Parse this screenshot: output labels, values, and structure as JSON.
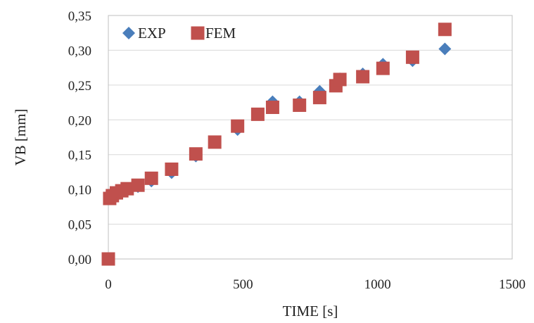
{
  "chart_data": {
    "type": "scatter",
    "xlabel": "TIME [s]",
    "ylabel": "VB [mm]",
    "xlim": [
      0,
      1500
    ],
    "ylim": [
      0,
      0.35
    ],
    "xticks": [
      0,
      500,
      1000,
      1500
    ],
    "xtick_labels": [
      "0",
      "500",
      "1000",
      "1500"
    ],
    "yticks": [
      0,
      0.05,
      0.1,
      0.15,
      0.2,
      0.25,
      0.3,
      0.35
    ],
    "ytick_labels": [
      "0,00",
      "0,05",
      "0,10",
      "0,15",
      "0,20",
      "0,25",
      "0,30",
      "0,35"
    ],
    "grid": "horizontal",
    "legend_position": "top-left",
    "series": [
      {
        "name": "EXP",
        "marker": "diamond",
        "color": "#4a7ebb",
        "x": [
          0,
          5,
          15,
          30,
          50,
          70,
          110,
          160,
          235,
          325,
          395,
          480,
          555,
          610,
          710,
          785,
          845,
          860,
          945,
          1020,
          1130,
          1250
        ],
        "y": [
          0.0,
          0.087,
          0.09,
          0.094,
          0.097,
          0.1,
          0.104,
          0.112,
          0.124,
          0.148,
          0.168,
          0.186,
          0.208,
          0.226,
          0.226,
          0.241,
          0.25,
          0.259,
          0.266,
          0.28,
          0.285,
          0.302
        ]
      },
      {
        "name": "FEM",
        "marker": "square",
        "color": "#c0504d",
        "x": [
          0,
          5,
          15,
          30,
          50,
          70,
          110,
          160,
          235,
          325,
          395,
          480,
          555,
          610,
          710,
          785,
          845,
          860,
          945,
          1020,
          1130,
          1250
        ],
        "y": [
          0.0,
          0.087,
          0.091,
          0.095,
          0.098,
          0.101,
          0.106,
          0.116,
          0.129,
          0.151,
          0.168,
          0.191,
          0.208,
          0.218,
          0.221,
          0.232,
          0.249,
          0.258,
          0.262,
          0.274,
          0.29,
          0.33
        ]
      }
    ]
  }
}
